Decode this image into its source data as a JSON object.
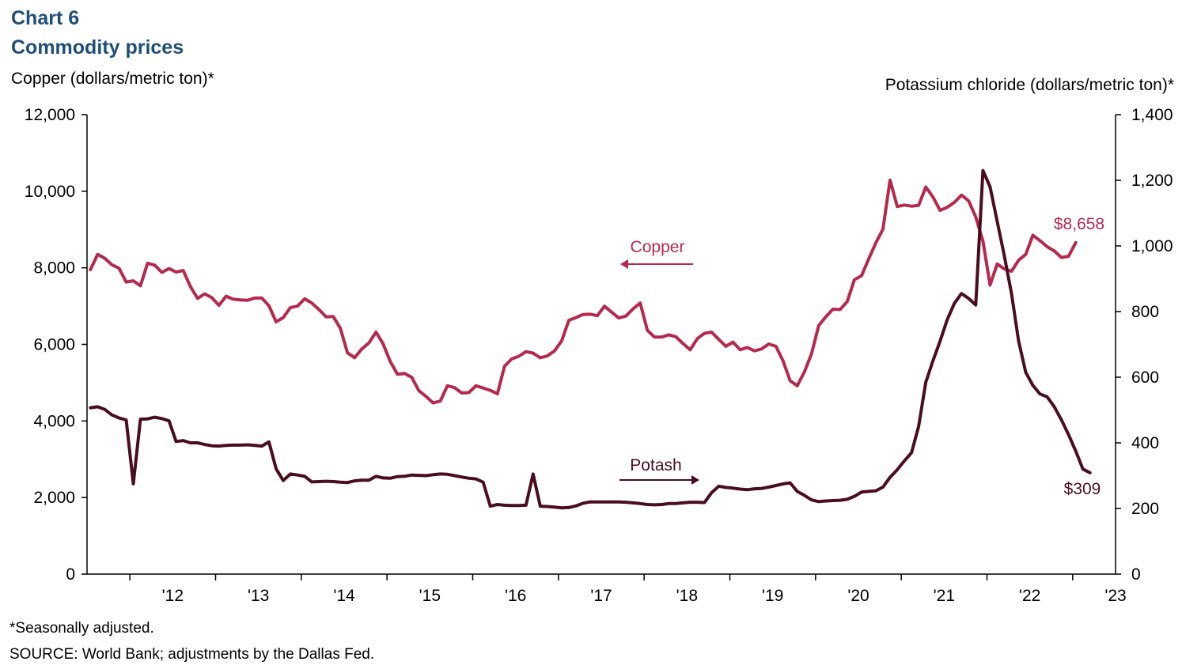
{
  "header": {
    "chart_number": "Chart 6",
    "title": "Commodity prices"
  },
  "axes": {
    "left_title": "Copper (dollars/metric ton)*",
    "right_title": "Potassium chloride (dollars/metric ton)*"
  },
  "footer": {
    "note": "*Seasonally adjusted.",
    "source": "SOURCE: World Bank; adjustments  by the Dallas Fed."
  },
  "colors": {
    "copper": "#b5294e",
    "potash": "#4a0d1e",
    "axis": "#000000"
  },
  "chart_data": {
    "type": "line",
    "x_range": [
      2011.5,
      2023.5
    ],
    "x_tick_labels": [
      "'12",
      "'13",
      "'14",
      "'15",
      "'16",
      "'17",
      "'18",
      "'19",
      "'20",
      "'21",
      "'22",
      "'23"
    ],
    "y_left": {
      "range": [
        0,
        12000
      ],
      "ticks": [
        0,
        2000,
        4000,
        6000,
        8000,
        10000,
        12000
      ]
    },
    "y_right": {
      "range": [
        0,
        1400
      ],
      "ticks": [
        0,
        200,
        400,
        600,
        800,
        1000,
        1200,
        1400
      ]
    },
    "grid": false,
    "legend": "inline annotations with arrows",
    "series": [
      {
        "name": "Copper",
        "axis": "left",
        "end_label": "$8,658",
        "start": 2011.54,
        "step": 0.0833,
        "values": [
          7950,
          8350,
          8250,
          8080,
          7990,
          7630,
          7660,
          7530,
          8120,
          8070,
          7880,
          7980,
          7890,
          7930,
          7510,
          7200,
          7320,
          7220,
          7020,
          7260,
          7180,
          7160,
          7150,
          7210,
          7210,
          7010,
          6590,
          6700,
          6960,
          7000,
          7190,
          7080,
          6910,
          6720,
          6730,
          6420,
          5780,
          5650,
          5880,
          6040,
          6320,
          6010,
          5550,
          5220,
          5240,
          5140,
          4790,
          4640,
          4470,
          4520,
          4920,
          4870,
          4730,
          4740,
          4920,
          4860,
          4800,
          4710,
          5430,
          5620,
          5690,
          5810,
          5770,
          5650,
          5700,
          5830,
          6090,
          6630,
          6700,
          6780,
          6790,
          6750,
          7000,
          6840,
          6690,
          6740,
          6930,
          7080,
          6370,
          6190,
          6190,
          6250,
          6200,
          6020,
          5860,
          6150,
          6290,
          6320,
          6130,
          5950,
          6060,
          5860,
          5920,
          5830,
          5880,
          6010,
          5950,
          5570,
          5050,
          4920,
          5280,
          5760,
          6490,
          6720,
          6920,
          6910,
          7120,
          7690,
          7790,
          8230,
          8650,
          9010,
          10290,
          9600,
          9640,
          9610,
          9630,
          10110,
          9850,
          9500,
          9580,
          9710,
          9900,
          9750,
          9330,
          8700,
          7550,
          8100,
          7970,
          7910,
          8200,
          8350,
          8850,
          8710,
          8550,
          8440,
          8270,
          8300,
          8658
        ]
      },
      {
        "name": "Potash",
        "axis": "right",
        "end_label": "$309",
        "start": 2011.54,
        "step": 0.0833,
        "values": [
          507,
          510,
          502,
          485,
          476,
          470,
          275,
          472,
          473,
          478,
          474,
          467,
          404,
          407,
          400,
          400,
          395,
          391,
          390,
          392,
          393,
          393,
          394,
          392,
          390,
          403,
          321,
          285,
          305,
          302,
          298,
          281,
          282,
          283,
          282,
          280,
          279,
          284,
          286,
          286,
          298,
          293,
          292,
          297,
          298,
          302,
          301,
          300,
          303,
          305,
          304,
          300,
          296,
          292,
          290,
          280,
          207,
          212,
          210,
          209,
          209,
          210,
          305,
          207,
          206,
          204,
          202,
          203,
          208,
          216,
          220,
          220,
          220,
          220,
          220,
          219,
          217,
          215,
          212,
          211,
          212,
          215,
          215,
          217,
          219,
          219,
          218,
          248,
          268,
          264,
          262,
          259,
          257,
          260,
          261,
          265,
          270,
          275,
          278,
          252,
          240,
          226,
          221,
          223,
          224,
          225,
          228,
          237,
          250,
          252,
          254,
          265,
          295,
          318,
          345,
          370,
          450,
          585,
          650,
          710,
          775,
          825,
          855,
          840,
          820,
          1230,
          1180,
          1075,
          970,
          855,
          710,
          615,
          575,
          549,
          540,
          510,
          470,
          425,
          375,
          320,
          309
        ]
      }
    ],
    "annotations": [
      {
        "text": "Copper",
        "arrow": "left"
      },
      {
        "text": "Potash",
        "arrow": "right"
      }
    ]
  }
}
